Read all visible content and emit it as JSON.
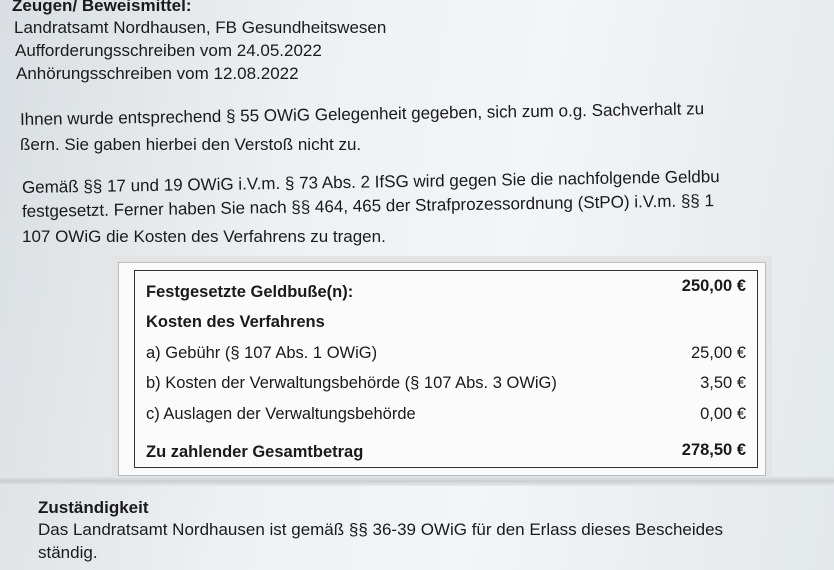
{
  "header": {
    "title": "Zeugen/ Beweismittel:",
    "lines": [
      "Landratsamt Nordhausen, FB Gesundheitswesen",
      "Aufforderungsschreiben vom 24.05.2022",
      "Anhörungsschreiben vom 12.08.2022"
    ]
  },
  "paragraph1": [
    "Ihnen wurde entsprechend § 55 OWiG Gelegenheit gegeben, sich zum o.g. Sachverhalt zu",
    "ßern. Sie gaben hierbei den Verstoß nicht zu."
  ],
  "paragraph2": [
    "Gemäß §§ 17 und 19 OWiG i.V.m. § 73 Abs. 2 IfSG wird gegen Sie die nachfolgende Geldbu",
    "festgesetzt. Ferner haben Sie nach §§ 464, 465 der Strafprozessordnung (StPO) i.V.m. §§ 1",
    "107 OWiG die Kosten des Verfahrens zu tragen."
  ],
  "table": {
    "fine": {
      "label": "Festgesetzte Geldbuße(n):",
      "amount": "250,00 €"
    },
    "costs_heading": "Kosten des Verfahrens",
    "items": [
      {
        "label": "a)  Gebühr (§ 107 Abs. 1 OWiG)",
        "amount": "25,00 €"
      },
      {
        "label": "b)  Kosten der Verwaltungsbehörde (§ 107 Abs. 3 OWiG)",
        "amount": "3,50 €"
      },
      {
        "label": "c)  Auslagen der Verwaltungsbehörde",
        "amount": "0,00 €"
      }
    ],
    "total": {
      "label": "Zu zahlender Gesamtbetrag",
      "amount": "278,50 €"
    }
  },
  "jurisdiction": {
    "heading": "Zuständigkeit",
    "lines": [
      "Das Landratsamt Nordhausen ist gemäß §§ 36-39 OWiG für den Erlass dieses Bescheides",
      "ständig."
    ]
  }
}
